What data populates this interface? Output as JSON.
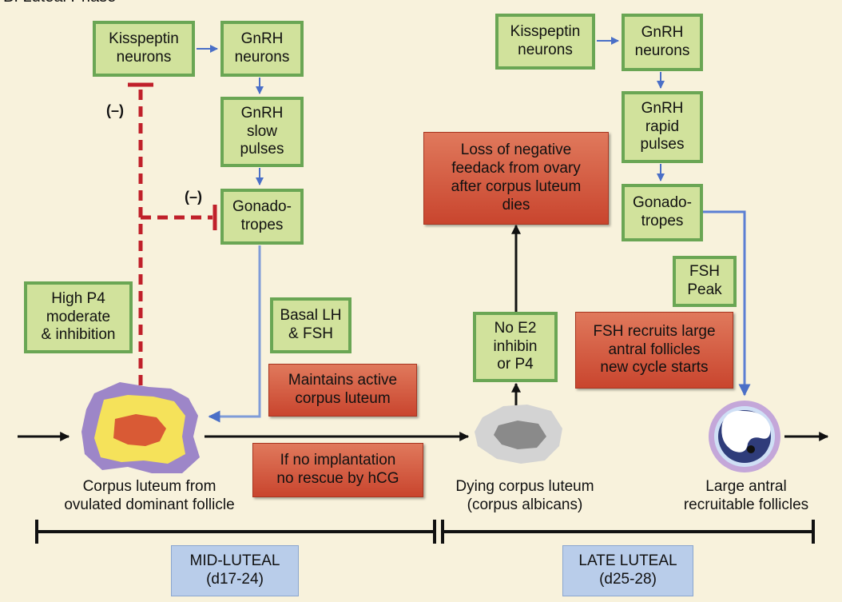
{
  "title": "B. Luteal Phase",
  "left": {
    "kisspeptin": "Kisspeptin\nneurons",
    "gnrh_neurons": "GnRH\nneurons",
    "gnrh_pulses": "GnRH\nslow\npulses",
    "gonadotropes": "Gonado-\ntropes",
    "neg_top": "(–)",
    "neg_mid": "(–)",
    "high_p4": "High P4\nmoderate\n& inhibition",
    "basal": "Basal LH\n& FSH",
    "maintains": "Maintains active\ncorpus luteum",
    "no_implant": "If no implantation\nno rescue by hCG",
    "corpus_label": "Corpus luteum from\novulated dominant follicle"
  },
  "middle": {
    "loss": "Loss of negative\nfeedack from ovary\nafter corpus luteum\ndies",
    "no_e2": "No E2\ninhibin\nor P4",
    "dying_label": "Dying corpus luteum\n(corpus albicans)"
  },
  "right": {
    "kisspeptin": "Kisspeptin\nneurons",
    "gnrh_neurons": "GnRH\nneurons",
    "gnrh_pulses": "GnRH\nrapid\npulses",
    "gonadotropes": "Gonado-\ntropes",
    "fsh_peak": "FSH\nPeak",
    "recruits": "FSH recruits large\nantral follicles\nnew cycle starts",
    "follicle_label": "Large antral\nrecruitable follicles"
  },
  "phases": {
    "mid": "MID-LUTEAL\n(d17-24)",
    "late": "LATE LUTEAL\n(d25-28)"
  },
  "colors": {
    "green_fill": "#d1e29c",
    "green_border": "#6aa654",
    "red_box": "#d35b3f",
    "blue_box": "#b9cdea",
    "inhibition": "#c0202a",
    "blue_arrow": "#4a6fc7"
  }
}
